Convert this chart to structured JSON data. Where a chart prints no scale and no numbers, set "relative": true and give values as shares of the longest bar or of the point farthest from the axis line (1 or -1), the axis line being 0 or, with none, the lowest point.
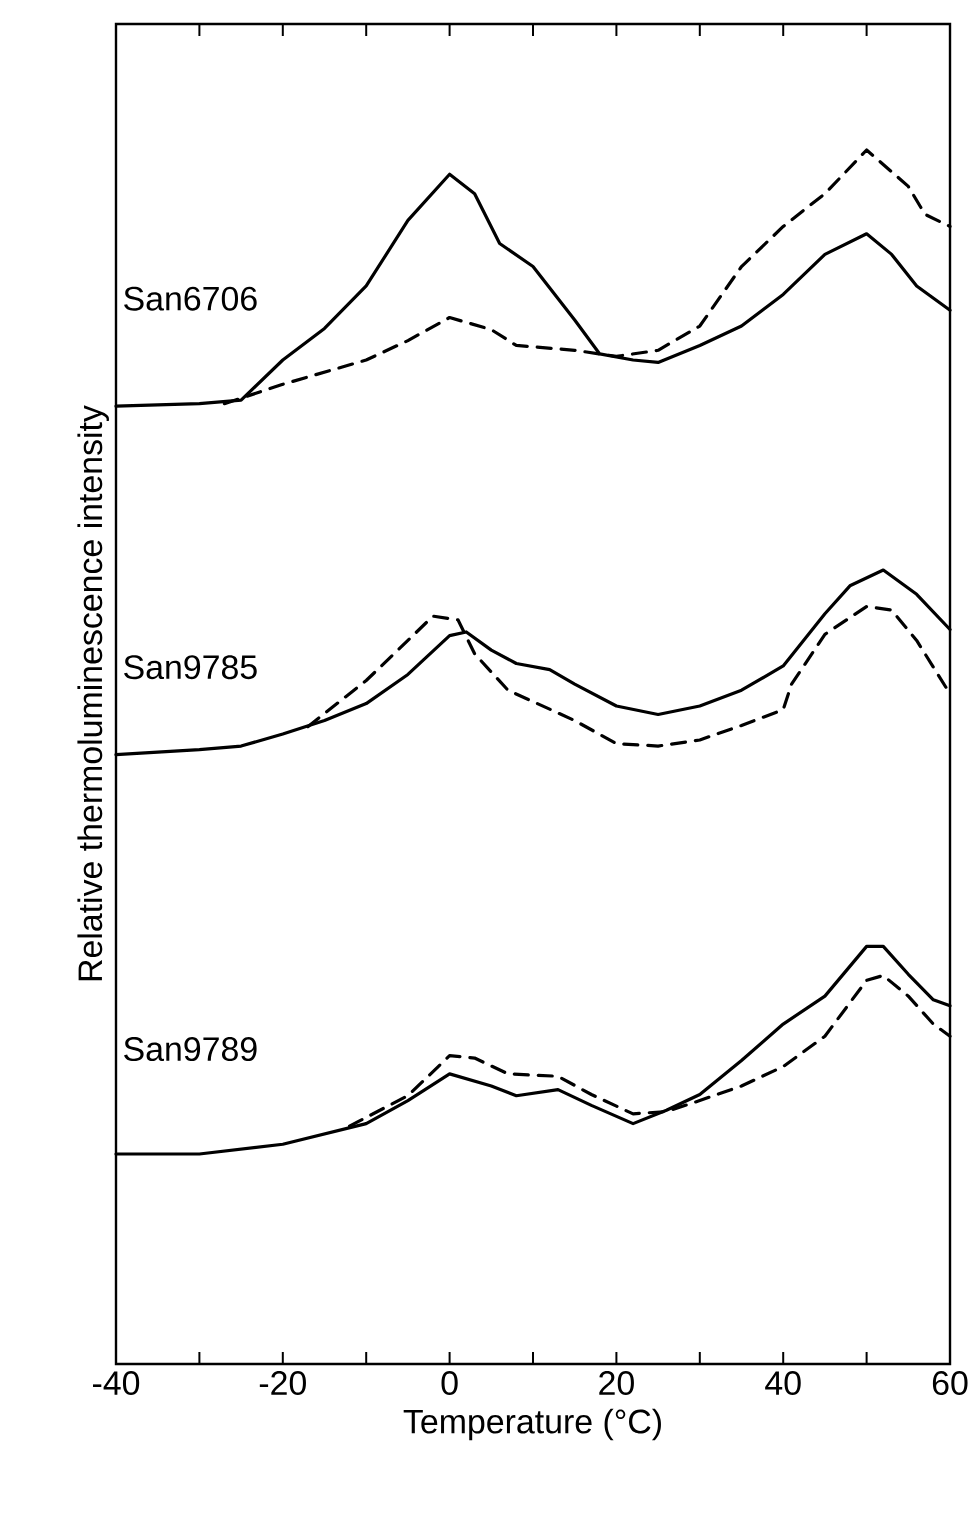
{
  "chart_data": {
    "type": "line",
    "relative": true,
    "xlabel": "Temperature (°C)",
    "ylabel": "Relative thermoluminescence intensity",
    "xlim": [
      -40,
      60
    ],
    "xticks": [
      -40,
      {
        "value": -30,
        "label": null
      },
      -20,
      {
        "value": -10,
        "label": null
      },
      0,
      {
        "value": 10,
        "label": null
      },
      20,
      {
        "value": 30,
        "label": null
      },
      40,
      {
        "value": 50,
        "label": null
      },
      60
    ],
    "grid": false,
    "marker": "none",
    "series": [
      {
        "color": "#000000",
        "line_style": "solid",
        "x": [
          -40,
          -30,
          -25,
          -20,
          -15,
          -10,
          -5,
          0,
          3,
          6,
          10,
          15,
          18,
          22,
          25,
          30,
          35,
          40,
          45,
          50,
          53,
          56,
          60
        ],
        "values": [
          0.789,
          0.791,
          0.794,
          0.827,
          0.853,
          0.888,
          0.942,
          0.98,
          0.964,
          0.923,
          0.904,
          0.86,
          0.832,
          0.827,
          0.825,
          0.839,
          0.855,
          0.881,
          0.914,
          0.931,
          0.914,
          0.888,
          0.868
        ]
      },
      {
        "color": "#000000",
        "line_style": "dashed",
        "x": [
          -27,
          -20,
          -10,
          -5,
          0,
          5,
          8,
          15,
          20,
          25,
          30,
          35,
          40,
          45,
          50,
          55,
          57,
          60
        ],
        "values": [
          0.791,
          0.807,
          0.827,
          0.843,
          0.862,
          0.852,
          0.839,
          0.835,
          0.83,
          0.835,
          0.855,
          0.904,
          0.937,
          0.964,
          1.0,
          0.97,
          0.947,
          0.937
        ]
      },
      {
        "color": "#000000",
        "line_style": "solid",
        "x": [
          -40,
          -30,
          -25,
          -20,
          -15,
          -10,
          -5,
          0,
          2,
          5,
          8,
          12,
          15,
          20,
          25,
          30,
          35,
          40,
          45,
          48,
          52,
          56,
          60
        ],
        "values": [
          0.502,
          0.506,
          0.509,
          0.519,
          0.53,
          0.544,
          0.568,
          0.6,
          0.603,
          0.588,
          0.577,
          0.572,
          0.56,
          0.542,
          0.535,
          0.542,
          0.555,
          0.575,
          0.618,
          0.641,
          0.654,
          0.634,
          0.605
        ]
      },
      {
        "color": "#000000",
        "line_style": "dashed",
        "x": [
          -17,
          -10,
          -5,
          -2,
          1,
          3,
          7,
          15,
          20,
          25,
          30,
          35,
          40,
          41,
          45,
          50,
          53,
          56,
          60
        ],
        "values": [
          0.525,
          0.563,
          0.596,
          0.616,
          0.613,
          0.585,
          0.555,
          0.53,
          0.511,
          0.509,
          0.514,
          0.526,
          0.539,
          0.56,
          0.601,
          0.624,
          0.621,
          0.596,
          0.552
        ]
      },
      {
        "color": "#000000",
        "line_style": "solid",
        "x": [
          -40,
          -30,
          -20,
          -10,
          -5,
          0,
          5,
          8,
          13,
          17,
          22,
          26,
          30,
          35,
          40,
          45,
          50,
          52,
          55,
          58,
          60
        ],
        "values": [
          0.173,
          0.173,
          0.181,
          0.198,
          0.217,
          0.239,
          0.229,
          0.221,
          0.226,
          0.213,
          0.198,
          0.209,
          0.222,
          0.25,
          0.28,
          0.303,
          0.344,
          0.344,
          0.321,
          0.3,
          0.295
        ]
      },
      {
        "color": "#000000",
        "line_style": "dashed",
        "x": [
          -12,
          -5,
          0,
          3,
          7,
          13,
          17,
          22,
          26,
          30,
          35,
          40,
          45,
          50,
          52,
          55,
          58,
          60
        ],
        "values": [
          0.196,
          0.221,
          0.254,
          0.252,
          0.239,
          0.237,
          0.222,
          0.206,
          0.208,
          0.217,
          0.229,
          0.245,
          0.27,
          0.316,
          0.32,
          0.303,
          0.28,
          0.27
        ]
      }
    ],
    "annotations": [
      "San6706",
      "San9785",
      "San9789"
    ]
  }
}
